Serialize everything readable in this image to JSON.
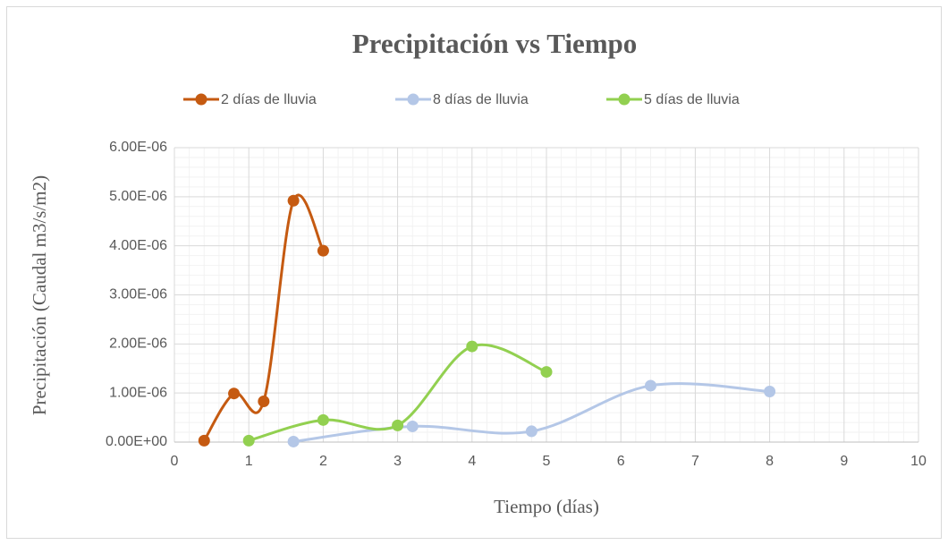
{
  "chart_data": {
    "type": "scatter-smooth",
    "title": "Precipitación vs Tiempo",
    "xlabel": "Tiempo (días)",
    "ylabel": "Precipitación (Caudal m3/s/m2)",
    "legend": "top",
    "grid": true,
    "minor_grid": true,
    "xlim": [
      0,
      10
    ],
    "xticks": [
      0,
      1,
      2,
      3,
      4,
      5,
      6,
      7,
      8,
      9,
      10
    ],
    "ylim": [
      0,
      6e-06
    ],
    "yticks": [
      {
        "value": 0,
        "label": "0.00E+00"
      },
      {
        "value": 1e-06,
        "label": "1.00E-06"
      },
      {
        "value": 2e-06,
        "label": "2.00E-06"
      },
      {
        "value": 3e-06,
        "label": "3.00E-06"
      },
      {
        "value": 4e-06,
        "label": "4.00E-06"
      },
      {
        "value": 5e-06,
        "label": "5.00E-06"
      },
      {
        "value": 6e-06,
        "label": "6.00E-06"
      }
    ],
    "series": [
      {
        "name": "2 días de lluvia",
        "color": "#c55a11",
        "x": [
          0.4,
          0.8,
          1.2,
          1.6,
          2.0
        ],
        "values": [
          3e-08,
          9.9e-07,
          8.3e-07,
          4.92e-06,
          3.9e-06
        ]
      },
      {
        "name": "8 días de lluvia",
        "color": "#b4c7e7",
        "x": [
          1.6,
          3.2,
          4.8,
          6.4,
          8.0
        ],
        "values": [
          1e-08,
          3.2e-07,
          2.2e-07,
          1.15e-06,
          1.03e-06
        ]
      },
      {
        "name": "5 días de lluvia",
        "color": "#92d050",
        "x": [
          1,
          2,
          3,
          4,
          5
        ],
        "values": [
          3e-08,
          4.5e-07,
          3.4e-07,
          1.95e-06,
          1.43e-06
        ]
      }
    ]
  }
}
